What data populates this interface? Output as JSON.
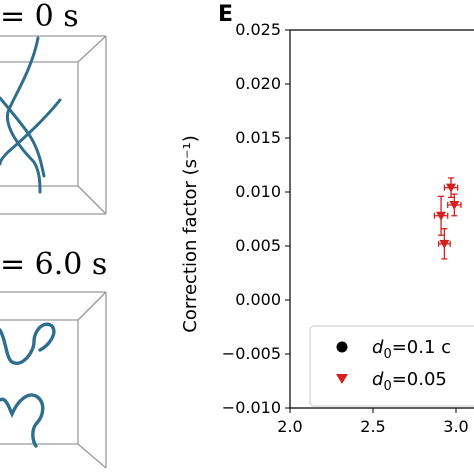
{
  "panels": {
    "left_top": {
      "time_label": "= 0 s"
    },
    "left_bottom": {
      "time_label": "= 6.0 s"
    },
    "right_letter": "E"
  },
  "chart_data": {
    "type": "scatter",
    "title": "",
    "xlabel": "",
    "ylabel": "Correction factor (s⁻¹)",
    "xlim": [
      2.0,
      3.1
    ],
    "ylim": [
      -0.01,
      0.025
    ],
    "x_ticks": [
      "2.0",
      "2.5",
      "3.0"
    ],
    "y_ticks": [
      "−0.010",
      "−0.005",
      "0.000",
      "0.005",
      "0.010",
      "0.015",
      "0.020",
      "0.025"
    ],
    "grid": false,
    "legend_position": "lower-right",
    "series": [
      {
        "name": "d₀=0.1 c",
        "marker": "circle",
        "color": "#000000",
        "points": []
      },
      {
        "name": "d₀=0.05",
        "marker": "triangle-down",
        "color": "#d62020",
        "points": [
          {
            "x": 2.91,
            "y": 0.0078,
            "xerr": 0.04,
            "yerr": 0.0018
          },
          {
            "x": 2.93,
            "y": 0.0052,
            "xerr": 0.035,
            "yerr": 0.0014
          },
          {
            "x": 2.97,
            "y": 0.0104,
            "xerr": 0.04,
            "yerr": 0.0009
          },
          {
            "x": 2.99,
            "y": 0.0088,
            "xerr": 0.04,
            "yerr": 0.001
          }
        ]
      }
    ],
    "legend_entries": [
      {
        "marker": "circle",
        "color": "#000000",
        "label_main": "d",
        "label_sub": "0",
        "label_rest": "=0.1 c"
      },
      {
        "marker": "triangle-down",
        "color": "#d62020",
        "label_main": "d",
        "label_sub": "0",
        "label_rest": "=0.05"
      }
    ]
  }
}
